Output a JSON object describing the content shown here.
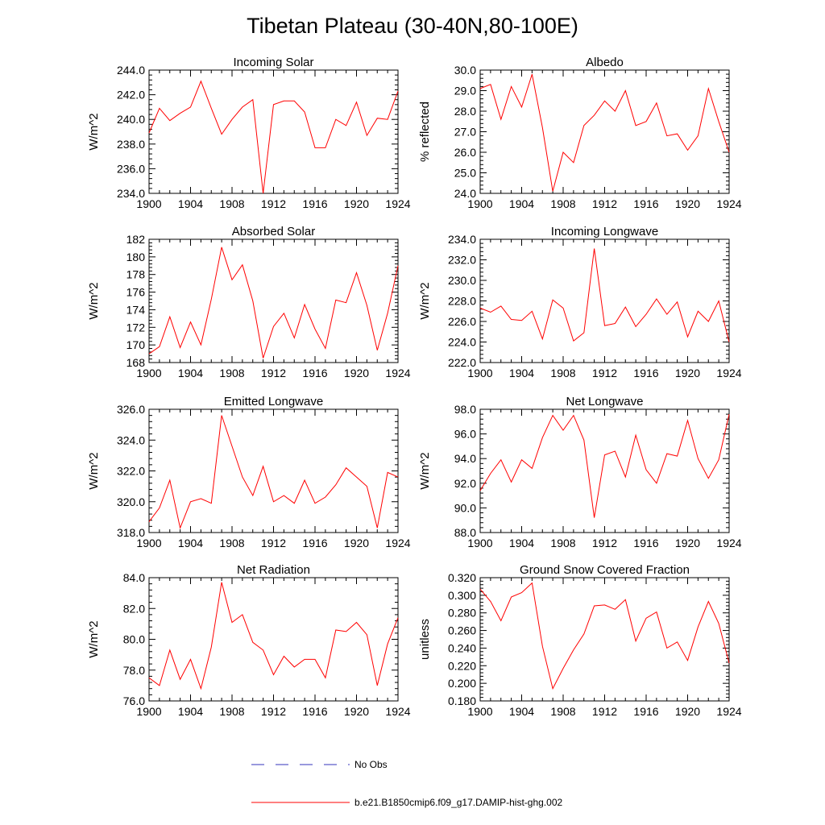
{
  "title": "Tibetan Plateau (30-40N,80-100E)",
  "legend": {
    "obs_label": "No Obs",
    "obs_color": "#3333bb",
    "model_label": "b.e21.B1850cmip6.f09_g17.DAMIP-hist-ghg.002",
    "model_color": "#ff0000"
  },
  "chart_data": [
    {
      "type": "line",
      "title": "Incoming Solar",
      "ylabel": "W/m^2",
      "xlim": [
        1900,
        1924
      ],
      "ylim": [
        234,
        244
      ],
      "xticks": [
        1900,
        1904,
        1908,
        1912,
        1916,
        1920,
        1924
      ],
      "xtick_labels": [
        "1900",
        "1904",
        "1908",
        "1912",
        "1916",
        "1920",
        "1924"
      ],
      "yticks": [
        234,
        236,
        238,
        240,
        242,
        244
      ],
      "ytick_labels": [
        "234.0",
        "236.0",
        "238.0",
        "240.0",
        "242.0",
        "244.0"
      ],
      "x": [
        1900,
        1901,
        1902,
        1903,
        1904,
        1905,
        1906,
        1907,
        1908,
        1909,
        1910,
        1911,
        1912,
        1913,
        1914,
        1915,
        1916,
        1917,
        1918,
        1919,
        1920,
        1921,
        1922,
        1923,
        1924
      ],
      "values": [
        238.9,
        240.9,
        239.9,
        240.5,
        241.0,
        243.1,
        240.9,
        238.8,
        240.0,
        241.0,
        241.6,
        234.0,
        241.2,
        241.5,
        241.5,
        240.6,
        237.7,
        237.7,
        240.0,
        239.5,
        241.4,
        238.7,
        240.1,
        240.0,
        242.3
      ]
    },
    {
      "type": "line",
      "title": "Albedo",
      "ylabel": "% reflected",
      "xlim": [
        1900,
        1924
      ],
      "ylim": [
        24,
        30
      ],
      "xticks": [
        1900,
        1904,
        1908,
        1912,
        1916,
        1920,
        1924
      ],
      "xtick_labels": [
        "1900",
        "1904",
        "1908",
        "1912",
        "1916",
        "1920",
        "1924"
      ],
      "yticks": [
        24,
        25,
        26,
        27,
        28,
        29,
        30
      ],
      "ytick_labels": [
        "24.0",
        "25.0",
        "26.0",
        "27.0",
        "28.0",
        "29.0",
        "30.0"
      ],
      "x": [
        1900,
        1901,
        1902,
        1903,
        1904,
        1905,
        1906,
        1907,
        1908,
        1909,
        1910,
        1911,
        1912,
        1913,
        1914,
        1915,
        1916,
        1917,
        1918,
        1919,
        1920,
        1921,
        1922,
        1923,
        1924
      ],
      "values": [
        29.1,
        29.3,
        27.6,
        29.2,
        28.2,
        29.8,
        27.2,
        24.1,
        26.0,
        25.5,
        27.3,
        27.8,
        28.5,
        28.0,
        29.0,
        27.3,
        27.5,
        28.4,
        26.8,
        26.9,
        26.1,
        26.8,
        29.1,
        27.5,
        26.0
      ]
    },
    {
      "type": "line",
      "title": "Absorbed Solar",
      "ylabel": "W/m^2",
      "xlim": [
        1900,
        1924
      ],
      "ylim": [
        168,
        182
      ],
      "xticks": [
        1900,
        1904,
        1908,
        1912,
        1916,
        1920,
        1924
      ],
      "xtick_labels": [
        "1900",
        "1904",
        "1908",
        "1912",
        "1916",
        "1920",
        "1924"
      ],
      "yticks": [
        168,
        170,
        172,
        174,
        176,
        178,
        180,
        182
      ],
      "ytick_labels": [
        "168",
        "170",
        "172",
        "174",
        "176",
        "178",
        "180",
        "182"
      ],
      "x": [
        1900,
        1901,
        1902,
        1903,
        1904,
        1905,
        1906,
        1907,
        1908,
        1909,
        1910,
        1911,
        1912,
        1913,
        1914,
        1915,
        1916,
        1917,
        1918,
        1919,
        1920,
        1921,
        1922,
        1923,
        1924
      ],
      "values": [
        169.0,
        169.8,
        173.2,
        169.7,
        172.6,
        170.0,
        175.2,
        181.1,
        177.4,
        179.1,
        175.0,
        168.5,
        172.1,
        173.6,
        170.8,
        174.6,
        171.8,
        169.6,
        175.1,
        174.8,
        178.2,
        174.5,
        169.4,
        173.6,
        179.0
      ]
    },
    {
      "type": "line",
      "title": "Incoming Longwave",
      "ylabel": "W/m^2",
      "xlim": [
        1900,
        1924
      ],
      "ylim": [
        222,
        234
      ],
      "xticks": [
        1900,
        1904,
        1908,
        1912,
        1916,
        1920,
        1924
      ],
      "xtick_labels": [
        "1900",
        "1904",
        "1908",
        "1912",
        "1916",
        "1920",
        "1924"
      ],
      "yticks": [
        222,
        224,
        226,
        228,
        230,
        232,
        234
      ],
      "ytick_labels": [
        "222.0",
        "224.0",
        "226.0",
        "228.0",
        "230.0",
        "232.0",
        "234.0"
      ],
      "x": [
        1900,
        1901,
        1902,
        1903,
        1904,
        1905,
        1906,
        1907,
        1908,
        1909,
        1910,
        1911,
        1912,
        1913,
        1914,
        1915,
        1916,
        1917,
        1918,
        1919,
        1920,
        1921,
        1922,
        1923,
        1924
      ],
      "values": [
        227.3,
        226.9,
        227.5,
        226.2,
        226.1,
        227.0,
        224.3,
        228.1,
        227.3,
        224.1,
        224.9,
        233.1,
        225.6,
        225.8,
        227.4,
        225.5,
        226.7,
        228.2,
        226.7,
        227.9,
        224.5,
        227.0,
        226.0,
        228.0,
        224.0
      ]
    },
    {
      "type": "line",
      "title": "Emitted Longwave",
      "ylabel": "W/m^2",
      "xlim": [
        1900,
        1924
      ],
      "ylim": [
        318,
        326
      ],
      "xticks": [
        1900,
        1904,
        1908,
        1912,
        1916,
        1920,
        1924
      ],
      "xtick_labels": [
        "1900",
        "1904",
        "1908",
        "1912",
        "1916",
        "1920",
        "1924"
      ],
      "yticks": [
        318,
        320,
        322,
        324,
        326
      ],
      "ytick_labels": [
        "318.0",
        "320.0",
        "322.0",
        "324.0",
        "326.0"
      ],
      "x": [
        1900,
        1901,
        1902,
        1903,
        1904,
        1905,
        1906,
        1907,
        1908,
        1909,
        1910,
        1911,
        1912,
        1913,
        1914,
        1915,
        1916,
        1917,
        1918,
        1919,
        1920,
        1921,
        1922,
        1923,
        1924
      ],
      "values": [
        318.7,
        319.6,
        321.4,
        318.3,
        320.0,
        320.2,
        319.9,
        325.6,
        323.6,
        321.6,
        320.4,
        322.3,
        320.0,
        320.4,
        319.9,
        321.4,
        319.9,
        320.3,
        321.1,
        322.2,
        321.6,
        321.0,
        318.3,
        321.9,
        321.6
      ]
    },
    {
      "type": "line",
      "title": "Net Longwave",
      "ylabel": "W/m^2",
      "xlim": [
        1900,
        1924
      ],
      "ylim": [
        88,
        98
      ],
      "xticks": [
        1900,
        1904,
        1908,
        1912,
        1916,
        1920,
        1924
      ],
      "xtick_labels": [
        "1900",
        "1904",
        "1908",
        "1912",
        "1916",
        "1920",
        "1924"
      ],
      "yticks": [
        88,
        90,
        92,
        94,
        96,
        98
      ],
      "ytick_labels": [
        "88.0",
        "90.0",
        "92.0",
        "94.0",
        "96.0",
        "98.0"
      ],
      "x": [
        1900,
        1901,
        1902,
        1903,
        1904,
        1905,
        1906,
        1907,
        1908,
        1909,
        1910,
        1911,
        1912,
        1913,
        1914,
        1915,
        1916,
        1917,
        1918,
        1919,
        1920,
        1921,
        1922,
        1923,
        1924
      ],
      "values": [
        91.4,
        92.8,
        93.9,
        92.1,
        93.9,
        93.2,
        95.7,
        97.5,
        96.3,
        97.5,
        95.5,
        89.2,
        94.3,
        94.6,
        92.5,
        95.9,
        93.1,
        92.0,
        94.4,
        94.2,
        97.1,
        94.0,
        92.4,
        93.9,
        97.6
      ]
    },
    {
      "type": "line",
      "title": "Net Radiation",
      "ylabel": "W/m^2",
      "xlim": [
        1900,
        1924
      ],
      "ylim": [
        76,
        84
      ],
      "xticks": [
        1900,
        1904,
        1908,
        1912,
        1916,
        1920,
        1924
      ],
      "xtick_labels": [
        "1900",
        "1904",
        "1908",
        "1912",
        "1916",
        "1920",
        "1924"
      ],
      "yticks": [
        76,
        78,
        80,
        82,
        84
      ],
      "ytick_labels": [
        "76.0",
        "78.0",
        "80.0",
        "82.0",
        "84.0"
      ],
      "x": [
        1900,
        1901,
        1902,
        1903,
        1904,
        1905,
        1906,
        1907,
        1908,
        1909,
        1910,
        1911,
        1912,
        1913,
        1914,
        1915,
        1916,
        1917,
        1918,
        1919,
        1920,
        1921,
        1922,
        1923,
        1924
      ],
      "values": [
        77.5,
        77.0,
        79.3,
        77.4,
        78.7,
        76.8,
        79.5,
        83.7,
        81.1,
        81.6,
        79.8,
        79.3,
        77.7,
        78.9,
        78.2,
        78.7,
        78.7,
        77.5,
        80.6,
        80.5,
        81.1,
        80.3,
        77.0,
        79.7,
        81.4
      ]
    },
    {
      "type": "line",
      "title": "Ground Snow Covered Fraction",
      "ylabel": "unitless",
      "xlim": [
        1900,
        1924
      ],
      "ylim": [
        0.18,
        0.32
      ],
      "xticks": [
        1900,
        1904,
        1908,
        1912,
        1916,
        1920,
        1924
      ],
      "xtick_labels": [
        "1900",
        "1904",
        "1908",
        "1912",
        "1916",
        "1920",
        "1924"
      ],
      "yticks": [
        0.18,
        0.2,
        0.22,
        0.24,
        0.26,
        0.28,
        0.3,
        0.32
      ],
      "ytick_labels": [
        "0.180",
        "0.200",
        "0.220",
        "0.240",
        "0.260",
        "0.280",
        "0.300",
        "0.320"
      ],
      "x": [
        1900,
        1901,
        1902,
        1903,
        1904,
        1905,
        1906,
        1907,
        1908,
        1909,
        1910,
        1911,
        1912,
        1913,
        1914,
        1915,
        1916,
        1917,
        1918,
        1919,
        1920,
        1921,
        1922,
        1923,
        1924
      ],
      "values": [
        0.307,
        0.293,
        0.271,
        0.298,
        0.303,
        0.314,
        0.242,
        0.194,
        0.217,
        0.238,
        0.256,
        0.288,
        0.289,
        0.284,
        0.295,
        0.248,
        0.274,
        0.281,
        0.24,
        0.247,
        0.226,
        0.264,
        0.293,
        0.268,
        0.223
      ]
    }
  ]
}
